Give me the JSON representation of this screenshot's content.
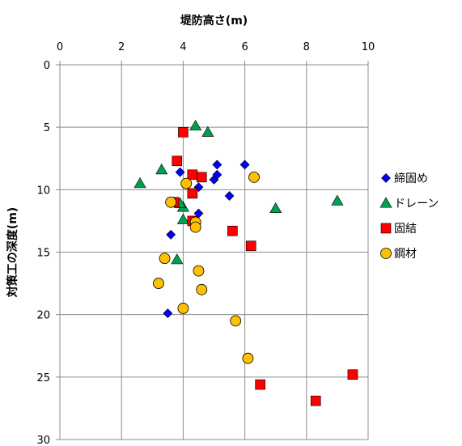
{
  "chart_data": {
    "type": "scatter",
    "xlabel": "堤防高さ(m)",
    "ylabel": "対策工の深度(m)",
    "x_axis_position": "top",
    "y_axis_inverted": true,
    "xlim": [
      0,
      10
    ],
    "ylim": [
      0,
      30
    ],
    "x_ticks": [
      "0",
      "2",
      "4",
      "6",
      "8",
      "10"
    ],
    "y_ticks": [
      "0",
      "5",
      "10",
      "15",
      "20",
      "25",
      "30"
    ],
    "grid": true,
    "legend_position": "right",
    "series": [
      {
        "name": "締固め",
        "marker": "diamond",
        "color": "#0000FF",
        "points": [
          [
            3.9,
            8.6
          ],
          [
            4.5,
            9.8
          ],
          [
            5.0,
            9.2
          ],
          [
            5.1,
            8.0
          ],
          [
            5.1,
            8.8
          ],
          [
            6.0,
            8.0
          ],
          [
            5.5,
            10.5
          ],
          [
            3.6,
            13.6
          ],
          [
            4.5,
            11.9
          ],
          [
            3.5,
            19.9
          ]
        ]
      },
      {
        "name": "ドレーン",
        "marker": "triangle",
        "color": "#00A050",
        "points": [
          [
            4.4,
            4.9
          ],
          [
            4.8,
            5.4
          ],
          [
            3.3,
            8.4
          ],
          [
            2.6,
            9.5
          ],
          [
            4.0,
            11.4
          ],
          [
            3.9,
            11.1
          ],
          [
            4.0,
            12.4
          ],
          [
            7.0,
            11.5
          ],
          [
            9.0,
            10.9
          ],
          [
            3.8,
            15.6
          ]
        ]
      },
      {
        "name": "固結",
        "marker": "square",
        "color": "#FF0000",
        "points": [
          [
            4.0,
            5.4
          ],
          [
            3.8,
            7.7
          ],
          [
            4.3,
            8.8
          ],
          [
            4.6,
            9.0
          ],
          [
            4.3,
            10.3
          ],
          [
            3.7,
            11.0
          ],
          [
            4.3,
            12.5
          ],
          [
            5.6,
            13.3
          ],
          [
            6.2,
            14.5
          ],
          [
            9.5,
            24.8
          ],
          [
            6.5,
            25.6
          ],
          [
            8.3,
            26.9
          ]
        ]
      },
      {
        "name": "鋼材",
        "marker": "circle",
        "color": "#FFC000",
        "points": [
          [
            4.1,
            9.5
          ],
          [
            6.3,
            9.0
          ],
          [
            3.6,
            11.0
          ],
          [
            4.4,
            12.6
          ],
          [
            4.4,
            13.0
          ],
          [
            3.4,
            15.5
          ],
          [
            4.5,
            16.5
          ],
          [
            3.2,
            17.5
          ],
          [
            4.6,
            18.0
          ],
          [
            4.0,
            19.5
          ],
          [
            5.7,
            20.5
          ],
          [
            6.1,
            23.5
          ]
        ]
      }
    ]
  }
}
